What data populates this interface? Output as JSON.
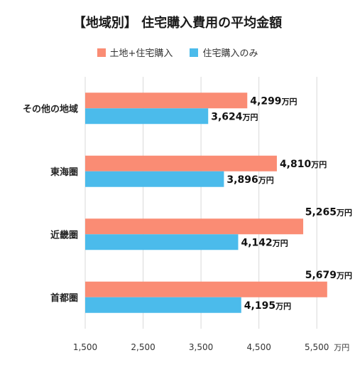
{
  "chart_data": {
    "type": "bar",
    "orientation": "horizontal",
    "title": "【地域別】 住宅購入費用の平均金額",
    "categories": [
      "その他の地域",
      "東海圏",
      "近畿圏",
      "首都圏"
    ],
    "series": [
      {
        "name": "土地+住宅購入",
        "color": "#FA8C74",
        "values": [
          4299,
          4810,
          5265,
          5679
        ]
      },
      {
        "name": "住宅購入のみ",
        "color": "#4BBBEB",
        "values": [
          3624,
          3896,
          4142,
          4195
        ]
      }
    ],
    "value_labels": [
      [
        "4,299万円",
        "4,810万円",
        "5,265万円",
        "5,679万円"
      ],
      [
        "3,624万円",
        "3,896万円",
        "4,142万円",
        "4,195万円"
      ]
    ],
    "x_ticks": [
      "1,500",
      "2,500",
      "3,500",
      "4,500",
      "5,500"
    ],
    "x_tick_values": [
      1500,
      2500,
      3500,
      4500,
      5500
    ],
    "x_unit": "万円",
    "xlim": [
      1500,
      6000
    ],
    "grid": true,
    "legend_position": "top"
  }
}
